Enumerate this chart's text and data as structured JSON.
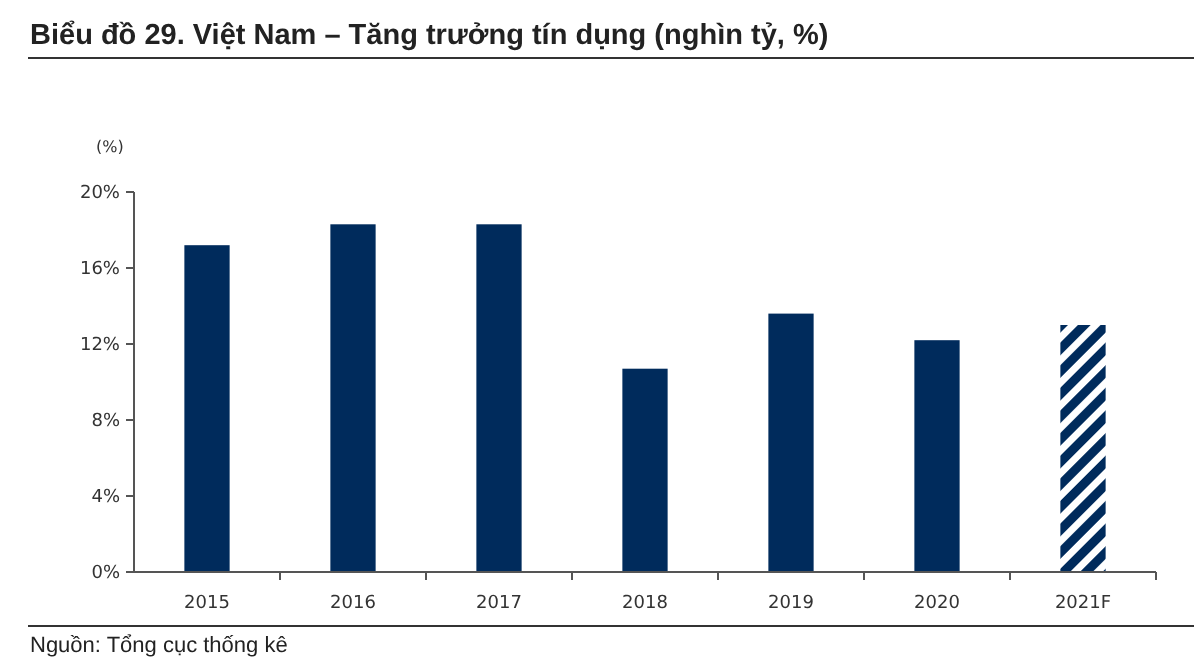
{
  "chart_data": {
    "type": "bar",
    "title": "Biểu đồ 29. Việt Nam – Tăng trưởng tín dụng (nghìn tỷ, %)",
    "ylabel": "(%)",
    "categories": [
      "2015",
      "2016",
      "2017",
      "2018",
      "2019",
      "2020",
      "2021F"
    ],
    "values": [
      17.2,
      18.3,
      18.3,
      10.7,
      13.6,
      12.2,
      13.0
    ],
    "color": "#002b5c",
    "ylim": [
      0,
      20
    ],
    "yticks": [
      {
        "value": 0,
        "label": "0%"
      },
      {
        "value": 4,
        "label": "4%"
      },
      {
        "value": 8,
        "label": "8%"
      },
      {
        "value": 12,
        "label": "12%"
      },
      {
        "value": 16,
        "label": "16%"
      },
      {
        "value": 20,
        "label": "20%"
      }
    ],
    "grid": false,
    "annotations": [
      "Nguồn: Tổng cục thống kê"
    ]
  }
}
